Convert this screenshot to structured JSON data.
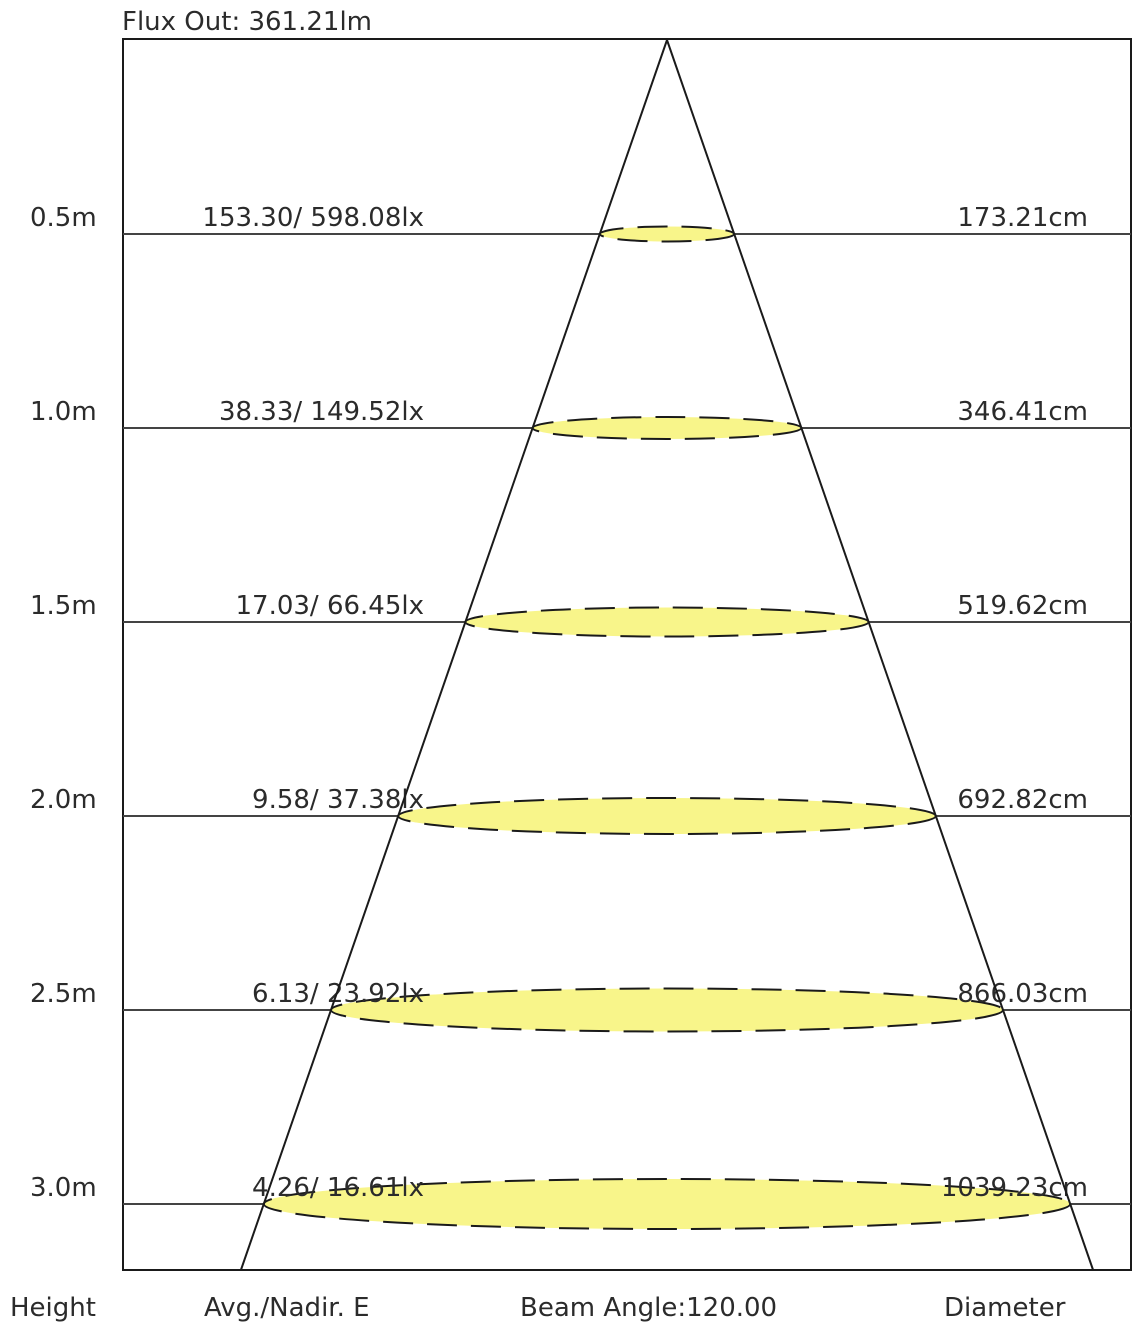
{
  "title": "Flux Out: 361.21lm",
  "footer": {
    "height_label": "Height",
    "illuminance_label": "Avg./Nadir. E",
    "beam_label": "Beam Angle:120.00",
    "diameter_label": "Diameter"
  },
  "beam_angle_deg": 120,
  "colors": {
    "spot_fill": "#f8f58a",
    "line": "#1a1a1a",
    "level_line": "#444444"
  },
  "levels": [
    {
      "height": "0.5m",
      "illuminance": "153.30/ 598.08lx",
      "diameter": "173.21cm",
      "height_m": 0.5,
      "diameter_cm": 173.21
    },
    {
      "height": "1.0m",
      "illuminance": "38.33/ 149.52lx",
      "diameter": "346.41cm",
      "height_m": 1.0,
      "diameter_cm": 346.41
    },
    {
      "height": "1.5m",
      "illuminance": "17.03/ 66.45lx",
      "diameter": "519.62cm",
      "height_m": 1.5,
      "diameter_cm": 519.62
    },
    {
      "height": "2.0m",
      "illuminance": "9.58/ 37.38lx",
      "diameter": "692.82cm",
      "height_m": 2.0,
      "diameter_cm": 692.82
    },
    {
      "height": "2.5m",
      "illuminance": "6.13/ 23.92lx",
      "diameter": "866.03cm",
      "height_m": 2.5,
      "diameter_cm": 866.03
    },
    {
      "height": "3.0m",
      "illuminance": "4.26/ 16.61lx",
      "diameter": "1039.23cm",
      "height_m": 3.0,
      "diameter_cm": 1039.23
    }
  ]
}
